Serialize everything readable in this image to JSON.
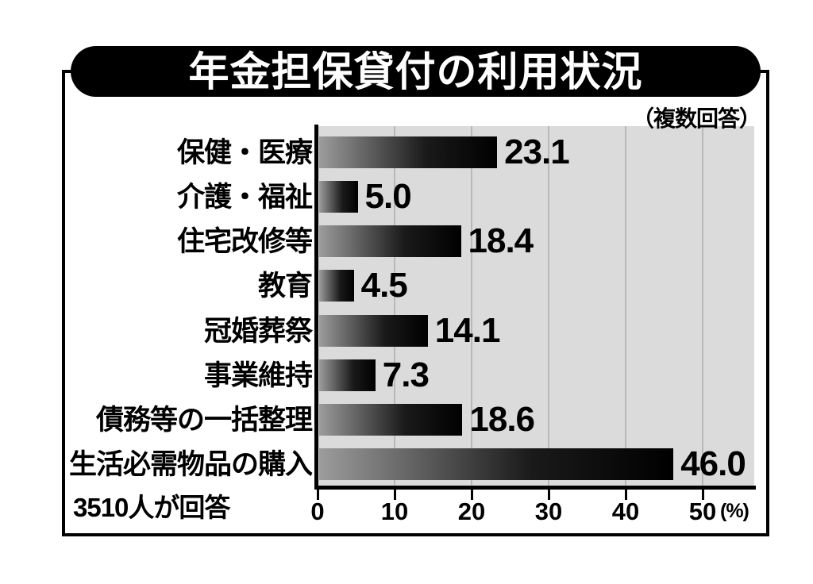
{
  "title": "年金担保貸付の利用状況",
  "note": "（複数回答）",
  "footnote": "3510人が回答",
  "chart_data": {
    "type": "bar",
    "orientation": "horizontal",
    "title": "年金担保貸付の利用状況",
    "subtitle_note": "（複数回答）",
    "footnote": "3510人が回答",
    "categories": [
      "保健・医療",
      "介護・福祉",
      "住宅改修等",
      "教育",
      "冠婚葬祭",
      "事業維持",
      "債務等の一括整理",
      "生活必需物品の購入"
    ],
    "values": [
      23.1,
      5.0,
      18.4,
      4.5,
      14.1,
      7.3,
      18.6,
      46.0
    ],
    "value_labels": [
      "23.1",
      "5.0",
      "18.4",
      "4.5",
      "14.1",
      "7.3",
      "18.6",
      "46.0"
    ],
    "x_ticks": [
      0,
      10,
      20,
      30,
      40,
      50
    ],
    "x_tick_labels": [
      "0",
      "10",
      "20",
      "30",
      "40",
      "50"
    ],
    "unit_label": "(%)",
    "xlabel": "",
    "ylabel": "",
    "xlim": [
      0,
      56.7
    ],
    "grid": true,
    "legend": false,
    "colors": {
      "bar_gradient_start": "#9c9c9c",
      "bar_gradient_end": "#000000",
      "plot_bg": "#dbdbdb",
      "grid_line": "#b8b8b8",
      "axis": "#000000",
      "frame": "#000000",
      "title_bg": "#000000",
      "title_text": "#ffffff"
    }
  }
}
